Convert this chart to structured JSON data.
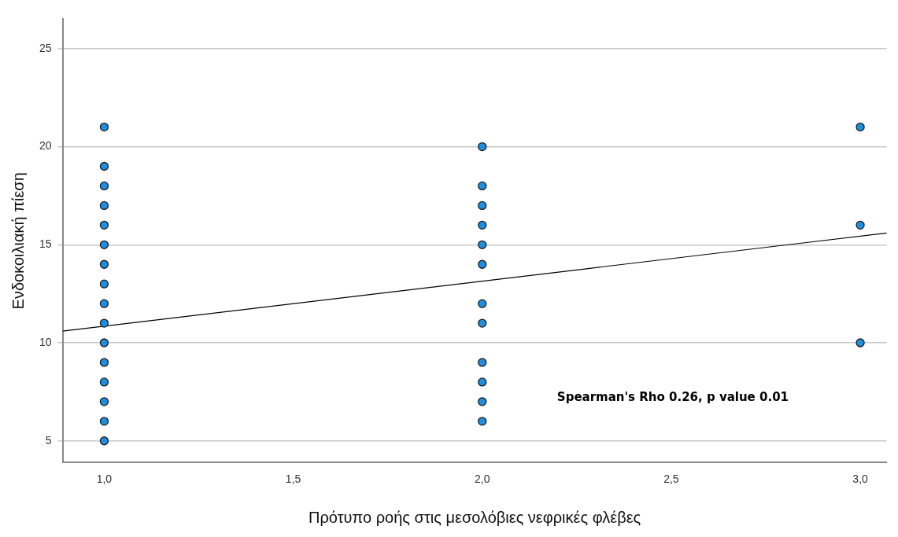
{
  "chart_data": {
    "type": "scatter",
    "xlabel": "Πρότυπο ροής στις μεσολόβιες νεφρικές φλέβες",
    "ylabel": "Ενδοκοιλιακή πίεση",
    "series": [
      {
        "color": "#1e8fe0",
        "marker": "circle",
        "x": [
          1,
          1,
          1,
          1,
          1,
          1,
          1,
          1,
          1,
          1,
          1,
          1,
          1,
          1,
          1,
          1,
          2,
          2,
          2,
          2,
          2,
          2,
          2,
          2,
          2,
          2,
          2,
          2,
          3,
          3,
          3
        ],
        "values": [
          21,
          19,
          18,
          17,
          16,
          15,
          14,
          13,
          12,
          11,
          10,
          9,
          8,
          7,
          6,
          5,
          20,
          18,
          17,
          16,
          15,
          14,
          12,
          11,
          9,
          8,
          7,
          6,
          21,
          16,
          10
        ]
      },
      {
        "type": "line",
        "marker": "none",
        "color": "#000000",
        "x": [
          0.89,
          3.07
        ],
        "values": [
          10.6,
          15.6
        ]
      }
    ],
    "xlim": [
      0.89,
      3.07
    ],
    "ylim": [
      3.9,
      26.5
    ],
    "xticks": [
      {
        "value": 1,
        "label": "1,0"
      },
      {
        "value": 1.5,
        "label": "1,5"
      },
      {
        "value": 2,
        "label": "2,0"
      },
      {
        "value": 2.5,
        "label": "2,5"
      },
      {
        "value": 3,
        "label": "3,0"
      }
    ],
    "yticks": [
      5,
      10,
      15,
      20,
      25
    ],
    "grid": "y",
    "annotations": [
      "Spearman's Rho 0.26, p value 0.01"
    ]
  }
}
